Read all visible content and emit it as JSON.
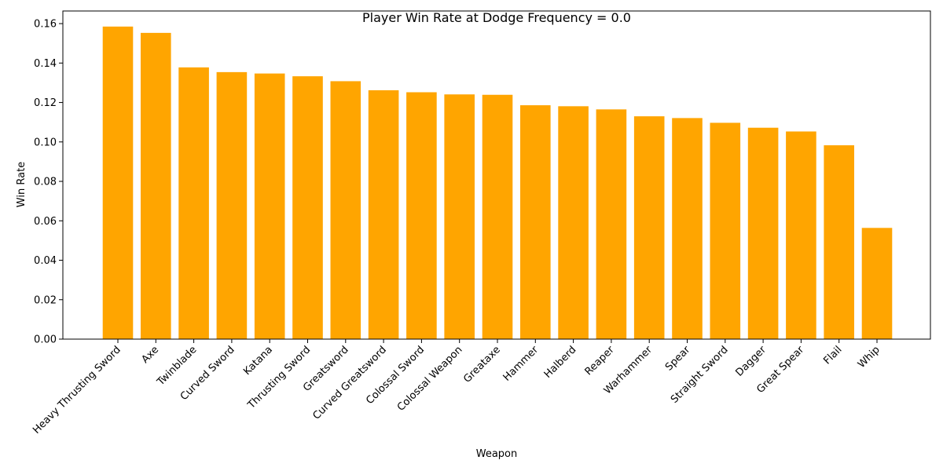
{
  "chart_data": {
    "type": "bar",
    "title": "Player Win Rate at Dodge Frequency = 0.0",
    "xlabel": "Weapon",
    "ylabel": "Win Rate",
    "ylim": [
      0,
      0.1664
    ],
    "yticks": [
      0.0,
      0.02,
      0.04,
      0.06,
      0.08,
      0.1,
      0.12,
      0.14,
      0.16
    ],
    "ytick_labels": [
      "0.00",
      "0.02",
      "0.04",
      "0.06",
      "0.08",
      "0.10",
      "0.12",
      "0.14",
      "0.16"
    ],
    "bar_color": "#ffa500",
    "grid": false,
    "categories": [
      "Heavy Thrusting Sword",
      "Axe",
      "Twinblade",
      "Curved Sword",
      "Katana",
      "Thrusting Sword",
      "Greatsword",
      "Curved Greatsword",
      "Colossal Sword",
      "Colossal Weapon",
      "Greataxe",
      "Hammer",
      "Halberd",
      "Reaper",
      "Warhammer",
      "Spear",
      "Straight Sword",
      "Dagger",
      "Great Spear",
      "Flail",
      "Whip"
    ],
    "values": [
      0.1585,
      0.1553,
      0.1378,
      0.1354,
      0.1347,
      0.1333,
      0.1308,
      0.1262,
      0.1252,
      0.1241,
      0.1239,
      0.1186,
      0.1181,
      0.1165,
      0.113,
      0.1121,
      0.1097,
      0.1072,
      0.1053,
      0.0983,
      0.0564
    ]
  }
}
